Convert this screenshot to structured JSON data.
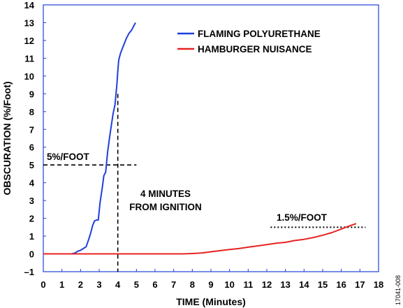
{
  "chart_data": {
    "type": "line",
    "xlabel": "TIME (Minutes)",
    "ylabel": "OBSCURATION (%/Foot)",
    "xlim": [
      0,
      18
    ],
    "ylim": [
      -1,
      14
    ],
    "xticks": [
      "0",
      "1",
      "2",
      "3",
      "4",
      "5",
      "6",
      "7",
      "8",
      "9",
      "10",
      "11",
      "12",
      "13",
      "14",
      "15",
      "16",
      "17",
      "18"
    ],
    "yticks": [
      "–1",
      "0",
      "1",
      "2",
      "3",
      "4",
      "5",
      "6",
      "7",
      "8",
      "9",
      "10",
      "11",
      "12",
      "13",
      "14"
    ],
    "grid": false,
    "legend_position": "top-right",
    "series": [
      {
        "name": "FLAMING POLYURETHANE",
        "color": "#1f3fdc",
        "points": [
          [
            0,
            0
          ],
          [
            1.5,
            0
          ],
          [
            1.7,
            0.05
          ],
          [
            1.85,
            0.15
          ],
          [
            2.0,
            0.2
          ],
          [
            2.15,
            0.3
          ],
          [
            2.3,
            0.4
          ],
          [
            2.45,
            0.85
          ],
          [
            2.55,
            1.2
          ],
          [
            2.65,
            1.6
          ],
          [
            2.75,
            1.85
          ],
          [
            2.85,
            1.9
          ],
          [
            2.95,
            1.9
          ],
          [
            3.05,
            2.9
          ],
          [
            3.15,
            3.6
          ],
          [
            3.25,
            4.4
          ],
          [
            3.35,
            4.6
          ],
          [
            3.45,
            5.7
          ],
          [
            3.55,
            6.5
          ],
          [
            3.65,
            7.2
          ],
          [
            3.75,
            7.9
          ],
          [
            3.85,
            8.4
          ],
          [
            3.95,
            9.5
          ],
          [
            4.0,
            10.3
          ],
          [
            4.05,
            10.9
          ],
          [
            4.15,
            11.3
          ],
          [
            4.3,
            11.7
          ],
          [
            4.45,
            12.1
          ],
          [
            4.6,
            12.4
          ],
          [
            4.75,
            12.6
          ],
          [
            4.85,
            12.8
          ],
          [
            4.95,
            13.0
          ]
        ]
      },
      {
        "name": "HAMBURGER NUISANCE",
        "color": "#e52421",
        "points": [
          [
            0,
            0
          ],
          [
            7.5,
            0
          ],
          [
            8.0,
            0.02
          ],
          [
            8.5,
            0.05
          ],
          [
            9.0,
            0.12
          ],
          [
            9.5,
            0.18
          ],
          [
            10.0,
            0.25
          ],
          [
            10.5,
            0.3
          ],
          [
            11.0,
            0.38
          ],
          [
            11.5,
            0.45
          ],
          [
            12.0,
            0.52
          ],
          [
            12.5,
            0.6
          ],
          [
            13.0,
            0.65
          ],
          [
            13.5,
            0.75
          ],
          [
            14.0,
            0.82
          ],
          [
            14.5,
            0.92
          ],
          [
            15.0,
            1.05
          ],
          [
            15.5,
            1.2
          ],
          [
            16.0,
            1.4
          ],
          [
            16.5,
            1.6
          ],
          [
            16.8,
            1.7
          ]
        ]
      }
    ],
    "annotations": [
      {
        "text": "5%/FOOT",
        "x": 0,
        "y": 5
      },
      {
        "text": "4 MINUTES",
        "x": 4,
        "y": 3.5
      },
      {
        "text": "FROM IGNITION",
        "x": 4,
        "y": 2.8
      },
      {
        "text": "1.5%/FOOT",
        "x": 12.5,
        "y": 1.5
      }
    ],
    "figure_id": "17041-008"
  }
}
